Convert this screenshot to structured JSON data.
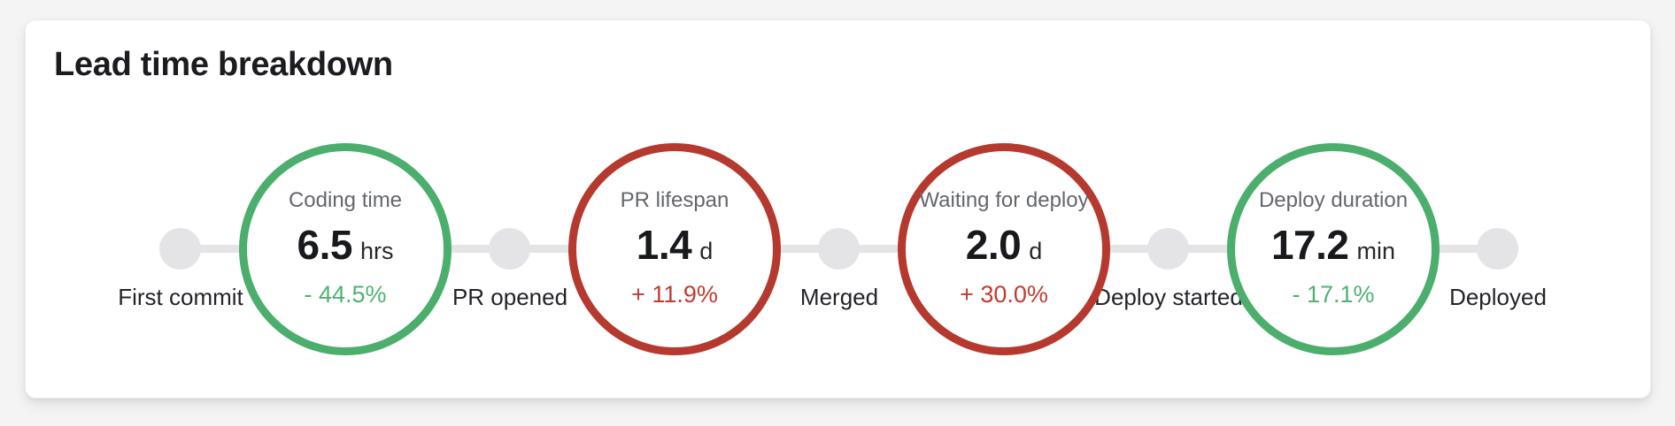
{
  "card": {
    "title": "Lead time breakdown"
  },
  "colors": {
    "background": "#f4f4f5",
    "card_background": "#ffffff",
    "positive_circle": "#4bae6c",
    "positive_text": "#4fb173",
    "negative_circle": "#b5392f",
    "negative_text": "#c13b30",
    "milestone_dot": "#e4e4e6",
    "connector_line": "#e4e4e6",
    "stage_name_text": "#63666c",
    "value_text": "#17191c"
  },
  "timeline": {
    "milestones": [
      {
        "label": "First commit"
      },
      {
        "label": "PR opened"
      },
      {
        "label": "Merged"
      },
      {
        "label": "Deploy started"
      },
      {
        "label": "Deployed"
      }
    ],
    "stages": [
      {
        "name": "Coding time",
        "value": "6.5",
        "unit": "hrs",
        "delta": "- 44.5%",
        "trend": "positive"
      },
      {
        "name": "PR lifespan",
        "value": "1.4",
        "unit": "d",
        "delta": "+ 11.9%",
        "trend": "negative"
      },
      {
        "name": "Waiting for deploy",
        "value": "2.0",
        "unit": "d",
        "delta": "+ 30.0%",
        "trend": "negative"
      },
      {
        "name": "Deploy duration",
        "value": "17.2",
        "unit": "min",
        "delta": "- 17.1%",
        "trend": "positive"
      }
    ]
  }
}
